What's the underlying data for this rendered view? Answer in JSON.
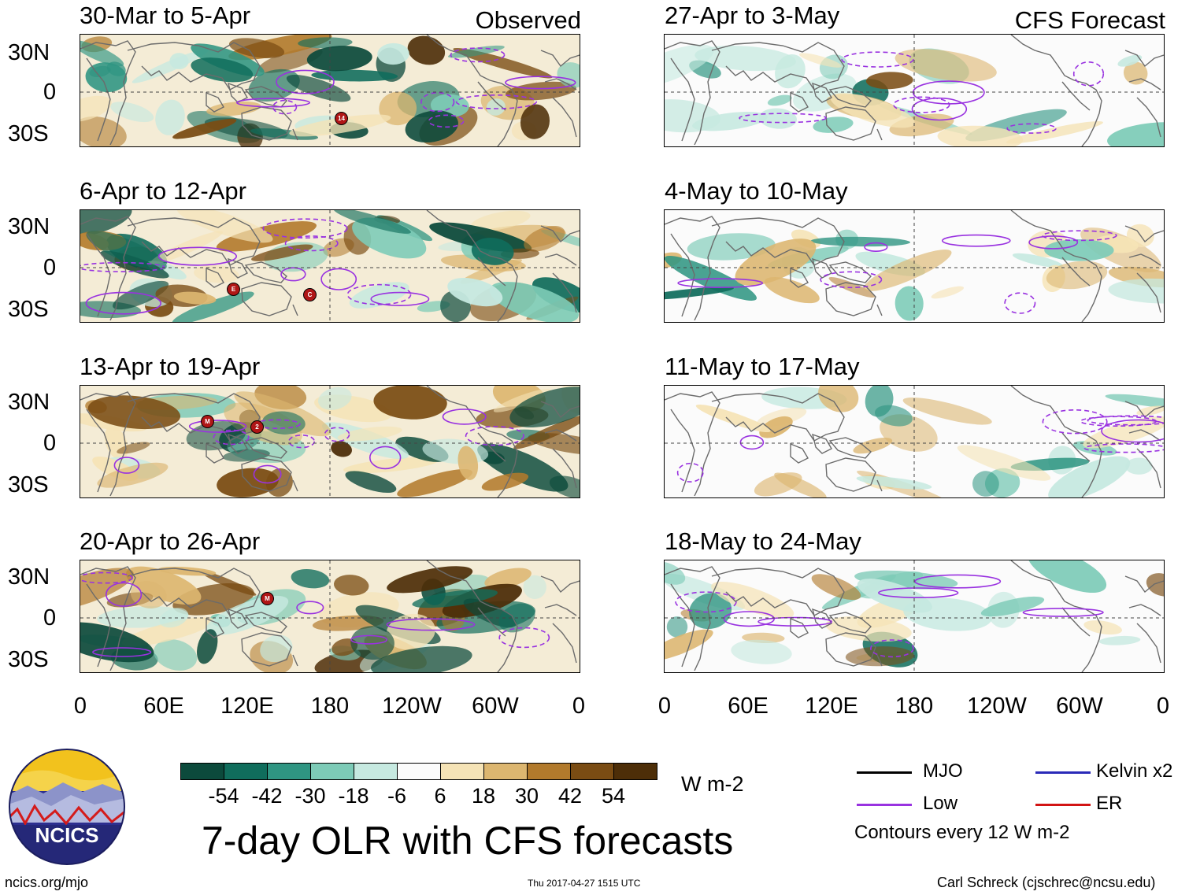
{
  "column_tags": {
    "observed": "Observed",
    "forecast": "CFS Forecast"
  },
  "panels_observed": [
    {
      "title": "30-Mar to 5-Apr"
    },
    {
      "title": "6-Apr to 12-Apr"
    },
    {
      "title": "13-Apr to 19-Apr"
    },
    {
      "title": "20-Apr to 26-Apr"
    }
  ],
  "panels_forecast": [
    {
      "title": "27-Apr to 3-May"
    },
    {
      "title": "4-May to 10-May"
    },
    {
      "title": "11-May to 17-May"
    },
    {
      "title": "18-May to 24-May"
    }
  ],
  "y_axis_labels": [
    "30N",
    "0",
    "30S"
  ],
  "x_axis_labels": [
    "0",
    "60E",
    "120E",
    "180",
    "120W",
    "60W",
    "0"
  ],
  "colorbar": {
    "labels": [
      "-54",
      "-42",
      "-30",
      "-18",
      "-6",
      "6",
      "18",
      "30",
      "42",
      "54"
    ],
    "colors": [
      "#0c4a3c",
      "#106d5c",
      "#2f9582",
      "#7dcbb7",
      "#c6e9e0",
      "#fbfbfb",
      "#f5e3b6",
      "#dcb670",
      "#b27a2c",
      "#7a4c13",
      "#4d2e08"
    ],
    "units": "W m-2"
  },
  "legend": {
    "items": [
      {
        "label": "MJO",
        "color": "#000000"
      },
      {
        "label": "Kelvin x2",
        "color": "#2a2ab8"
      },
      {
        "label": "Low",
        "color": "#9932e0"
      },
      {
        "label": "ER",
        "color": "#d21414"
      }
    ],
    "note": "Contours every 12 W m-2"
  },
  "logo": {
    "text": "NCICS"
  },
  "main_title": "7-day OLR with CFS forecasts",
  "footer": {
    "left": "ncics.org/mjo",
    "center": "Thu 2017-04-27 1515 UTC",
    "right": "Carl Schreck (cjschrec@ncsu.edu)"
  },
  "storm_markers": {
    "panel_0": [
      "14"
    ],
    "panel_1": [
      "E",
      "C"
    ],
    "panel_2": [
      "M",
      "2"
    ],
    "panel_3": [
      "M"
    ]
  }
}
